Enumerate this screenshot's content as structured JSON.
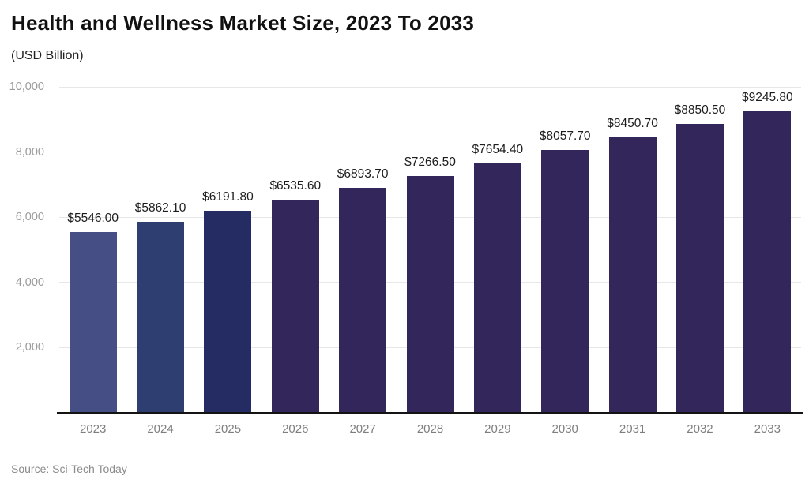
{
  "header": {
    "title": "Health and Wellness Market Size, 2023 To 2033",
    "subtitle": "(USD Billion)"
  },
  "footer": {
    "source": "Source: Sci-Tech Today"
  },
  "chart_data": {
    "type": "bar",
    "title": "Health and Wellness Market Size, 2023 To 2033",
    "unit_label": "(USD Billion)",
    "categories": [
      "2023",
      "2024",
      "2025",
      "2026",
      "2027",
      "2028",
      "2029",
      "2030",
      "2031",
      "2032",
      "2033"
    ],
    "values": [
      5546.0,
      5862.1,
      6191.8,
      6535.6,
      6893.7,
      7266.5,
      7654.4,
      8057.7,
      8450.7,
      8850.5,
      9245.8
    ],
    "value_labels": [
      "$5546.00",
      "$5862.10",
      "$6191.80",
      "$6535.60",
      "$6893.70",
      "$7266.50",
      "$7654.40",
      "$8057.70",
      "$8450.70",
      "$8850.50",
      "$9245.80"
    ],
    "bar_colors": [
      "#454E85",
      "#2F3E71",
      "#242C63",
      "#33265A",
      "#33265A",
      "#33265A",
      "#33265A",
      "#33265A",
      "#33265A",
      "#33265A",
      "#33265A"
    ],
    "xlabel": "",
    "ylabel": "",
    "ylim": [
      0,
      10000
    ],
    "yticks": [
      2000,
      4000,
      6000,
      8000,
      10000
    ],
    "ytick_labels": [
      "2,000",
      "4,000",
      "6,000",
      "8,000",
      "10,000"
    ],
    "grid": true,
    "legend": false,
    "colors": {
      "gridline": "#e7e7e7",
      "axis_line": "#141414",
      "title_text": "#111111",
      "value_label_text": "#1c1c1c",
      "tick_text": "#9b9b9b",
      "source_text": "#8b8b8b"
    },
    "source": "Source: Sci-Tech Today"
  }
}
